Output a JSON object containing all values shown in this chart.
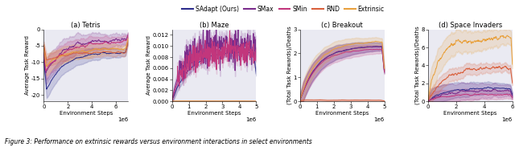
{
  "legend_labels": [
    "SAdapt (Ours)",
    "SMax",
    "SMin",
    "RND",
    "Extrinsic"
  ],
  "legend_colors": [
    "#2d2d8c",
    "#7b2d8c",
    "#c2367c",
    "#d95f3b",
    "#e8a03c"
  ],
  "subplot_titles": [
    "(a) Tetris",
    "(b) Maze",
    "(c) Breakout",
    "(d) Space Invaders"
  ],
  "ylabels": [
    "Average Task Reward",
    "Average Task Reward",
    "(Total Task Rewards)/Deaths",
    "(Total Task Rewards)/Deaths"
  ],
  "xlabel": "Environment Steps",
  "figure_caption": "Figure 3: Performance on extrinsic rewards versus environment interactions in select environments",
  "n_steps": 300,
  "tetris": {
    "xlim": [
      0,
      700000.0
    ],
    "ylim": [
      -22,
      0
    ],
    "yticks": [
      0,
      -5,
      -10,
      -15,
      -20
    ],
    "xticks": [
      0,
      200000.0,
      400000.0,
      600000.0
    ],
    "xticklabels": [
      "0",
      "2",
      "4",
      "6"
    ]
  },
  "maze": {
    "xlim": [
      0,
      500000.0
    ],
    "ylim": [
      0,
      0.013
    ],
    "yticks": [
      0.0,
      0.002,
      0.004,
      0.006,
      0.008,
      0.01,
      0.012
    ],
    "xticks": [
      0,
      100000.0,
      200000.0,
      300000.0,
      400000.0,
      500000.0
    ],
    "xticklabels": [
      "0",
      "1",
      "2",
      "3",
      "4",
      "5"
    ]
  },
  "breakout": {
    "xlim": [
      0,
      500000.0
    ],
    "ylim": [
      0,
      3
    ],
    "yticks": [
      0,
      1,
      2,
      3
    ],
    "xticks": [
      0,
      100000.0,
      200000.0,
      300000.0,
      400000.0,
      500000.0
    ],
    "xticklabels": [
      "0",
      "1",
      "2",
      "3",
      "4",
      "5"
    ]
  },
  "space_invaders": {
    "xlim": [
      0,
      600000.0
    ],
    "ylim": [
      0,
      8
    ],
    "yticks": [
      0,
      2,
      4,
      6,
      8
    ],
    "xticks": [
      0,
      200000.0,
      400000.0,
      600000.0
    ],
    "xticklabels": [
      "0",
      "2",
      "4",
      "6"
    ]
  },
  "background_color": "#eaeaf2"
}
